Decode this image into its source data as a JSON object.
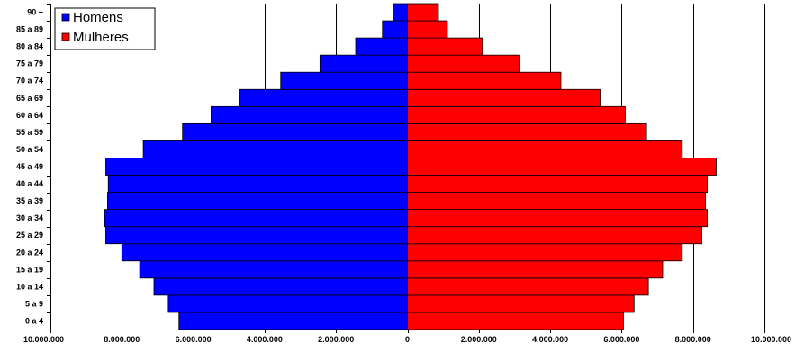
{
  "chart_data": {
    "type": "bar",
    "orientation": "horizontal",
    "layout": "population-pyramid",
    "categories": [
      "0 a 4",
      "5 a 9",
      "10 a 14",
      "15 a 19",
      "20 a 24",
      "25 a 29",
      "30 a 34",
      "35 a 39",
      "40 a 44",
      "45 a 49",
      "50 a 54",
      "55 a 59",
      "60 a 64",
      "65 a 69",
      "70 a 74",
      "75 a 79",
      "80 a 84",
      "85 a 89",
      "90 +"
    ],
    "series": [
      {
        "name": "Homens",
        "color": "#0000ff",
        "side": "left",
        "values": [
          6400000,
          6700000,
          7100000,
          7500000,
          8000000,
          8450000,
          8480000,
          8400000,
          8380000,
          8450000,
          7400000,
          6300000,
          5500000,
          4700000,
          3550000,
          2450000,
          1450000,
          700000,
          400000
        ]
      },
      {
        "name": "Mulheres",
        "color": "#ff0000",
        "side": "right",
        "values": [
          6050000,
          6350000,
          6750000,
          7150000,
          7700000,
          8250000,
          8400000,
          8350000,
          8400000,
          8650000,
          7700000,
          6700000,
          6100000,
          5400000,
          4300000,
          3150000,
          2100000,
          1120000,
          870000
        ]
      }
    ],
    "xlim": [
      -10000000,
      10000000
    ],
    "xticks": [
      -10000000,
      -8000000,
      -6000000,
      -4000000,
      -2000000,
      0,
      2000000,
      4000000,
      6000000,
      8000000,
      10000000
    ],
    "xtick_labels": [
      "10.000.000",
      "8.000.000",
      "6.000.000",
      "4.000.000",
      "2.000.000",
      "0",
      "2.000.000",
      "4.000.000",
      "6.000.000",
      "8.000.000",
      "10.000.000"
    ],
    "title": "",
    "xlabel": "",
    "ylabel": "",
    "grid": "vertical",
    "legend": "top-left",
    "bar_border_color": "#000000"
  }
}
